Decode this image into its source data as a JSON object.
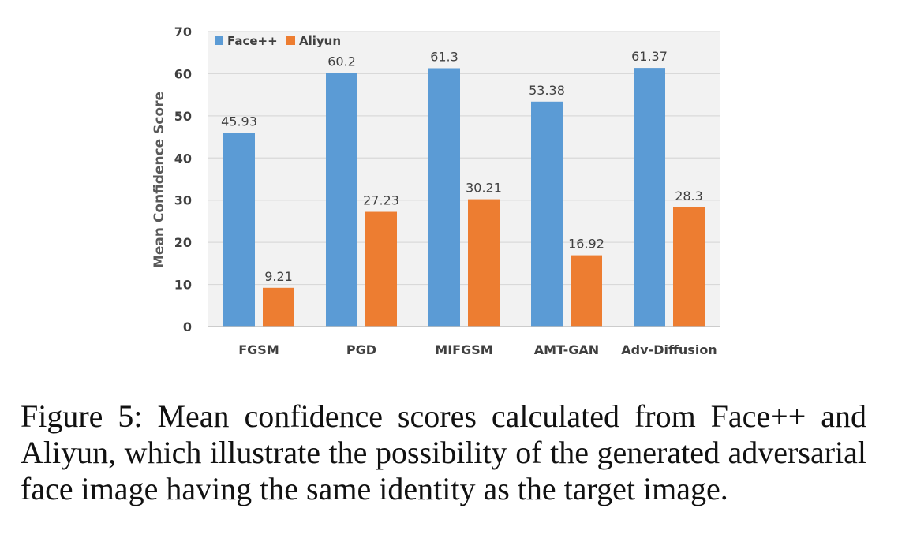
{
  "chart_data": {
    "type": "bar",
    "title": "",
    "xlabel": "",
    "ylabel": "Mean Confidence Score",
    "ylim": [
      0,
      70
    ],
    "yticks": [
      0,
      10,
      20,
      30,
      40,
      50,
      60,
      70
    ],
    "grid": true,
    "legend_position": "top-left",
    "categories": [
      "FGSM",
      "PGD",
      "MIFGSM",
      "AMT-GAN",
      "Adv-Diffusion"
    ],
    "series": [
      {
        "name": "Face++",
        "color": "#5b9bd5",
        "values": [
          45.93,
          60.2,
          61.3,
          53.38,
          61.37
        ],
        "labels": [
          "45.93",
          "60.2",
          "61.3",
          "53.38",
          "61.37"
        ]
      },
      {
        "name": "Aliyun",
        "color": "#ed7d31",
        "values": [
          9.21,
          27.23,
          30.21,
          16.92,
          28.3
        ],
        "labels": [
          "9.21",
          "27.23",
          "30.21",
          "16.92",
          "28.3"
        ]
      }
    ]
  },
  "caption": "Figure 5: Mean confidence scores calculated from Face++ and Aliyun, which illustrate the possibility of the generated adversarial face image having the same identity as the target image."
}
